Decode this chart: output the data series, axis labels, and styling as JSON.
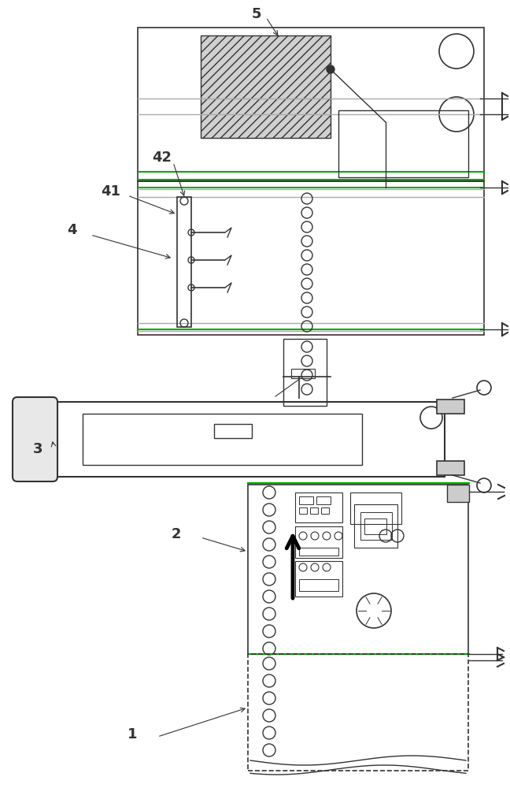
{
  "bg_color": "#ffffff",
  "line_color": "#333333",
  "gray_color": "#aaaaaa",
  "light_gray": "#cccccc",
  "green_line": "#00aa00",
  "label_color": "#000000",
  "figsize": [
    6.48,
    10.0
  ],
  "dpi": 100
}
